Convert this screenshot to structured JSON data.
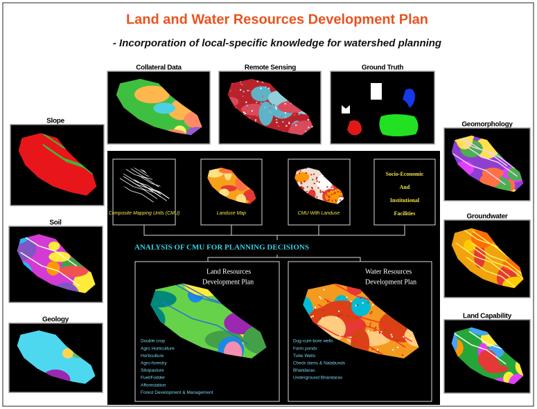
{
  "header": {
    "title": "Land and Water Resources Development Plan",
    "subtitle": "- Incorporation of local-specific knowledge for watershed planning"
  },
  "top_panels": [
    "Collateral Data",
    "Remote Sensing",
    "Ground Truth"
  ],
  "left_panels": [
    "Slope",
    "Soil",
    "Geology"
  ],
  "right_panels": [
    "Geomorphology",
    "Groundwater",
    "Land Capability"
  ],
  "center": {
    "inputs": [
      "Composite Mapping Units (CMU)",
      "Landuse Map",
      "CMU With Landuse"
    ],
    "socio_economic": [
      "Socio-Economic",
      "And",
      "Institutional",
      "Facilities"
    ],
    "analysis_heading": "ANALYSIS OF CMU FOR PLANNING DECISIONS",
    "land_plan": {
      "title": [
        "Land Resources",
        "Development Plan"
      ],
      "items": [
        "Double crop",
        "Agro Horticulture",
        "Horticulture",
        "Agro-forestry",
        "Silvipasture",
        "Fuel/Fodder",
        "Afforestation",
        "Forest Development & Management"
      ]
    },
    "water_plan": {
      "title": [
        "Water Resources",
        "Development Plan"
      ],
      "items": [
        "Dug-cum-bore wells",
        "Farm ponds",
        "Tube Wells",
        "Check dams & Nalabunds",
        "Bhandaras",
        "Underground Bhandaras"
      ]
    }
  }
}
